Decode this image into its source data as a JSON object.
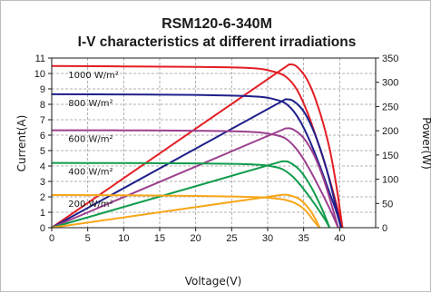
{
  "chart_data": {
    "type": "line",
    "title": "RSM120-6-340M",
    "subtitle": "I-V characteristics at different irradiations",
    "xlabel": "Voltage(V)",
    "ylabel_left": "Current(A)",
    "ylabel_right": "Power(W)",
    "xlim": [
      0,
      45
    ],
    "ylim_left": [
      0,
      11
    ],
    "ylim_right": [
      0,
      350
    ],
    "xticks": [
      0,
      5,
      10,
      15,
      20,
      25,
      30,
      35,
      40
    ],
    "yticks_left": [
      0,
      1,
      2,
      3,
      4,
      5,
      6,
      7,
      8,
      9,
      10,
      11
    ],
    "yticks_right": [
      0,
      50,
      100,
      150,
      200,
      250,
      300,
      350
    ],
    "grid": "dashed",
    "series": [
      {
        "name": "1000 W/m²",
        "color": "#e31e24",
        "iv": [
          [
            0,
            10.48
          ],
          [
            10,
            10.46
          ],
          [
            20,
            10.43
          ],
          [
            26,
            10.38
          ],
          [
            29,
            10.3
          ],
          [
            31,
            10.1
          ],
          [
            32.5,
            9.8
          ],
          [
            34,
            9.0
          ],
          [
            35.5,
            7.5
          ],
          [
            37,
            5.5
          ],
          [
            38.5,
            3.3
          ],
          [
            39.5,
            1.6
          ],
          [
            40.4,
            0
          ]
        ],
        "pv": [
          [
            0,
            0
          ],
          [
            33,
            337
          ],
          [
            34,
            333
          ],
          [
            35.5,
            305
          ],
          [
            37,
            250
          ],
          [
            38.5,
            170
          ],
          [
            39.5,
            90
          ],
          [
            40.4,
            0
          ]
        ]
      },
      {
        "name": "800 W/m²",
        "color": "#1f1f8c",
        "iv": [
          [
            0,
            8.65
          ],
          [
            10,
            8.64
          ],
          [
            20,
            8.61
          ],
          [
            26,
            8.55
          ],
          [
            29,
            8.48
          ],
          [
            31,
            8.32
          ],
          [
            32.5,
            8.05
          ],
          [
            34,
            7.3
          ],
          [
            35.5,
            6.0
          ],
          [
            37,
            4.3
          ],
          [
            38.5,
            2.4
          ],
          [
            39.5,
            1.1
          ],
          [
            40.2,
            0
          ]
        ],
        "pv": [
          [
            0,
            0
          ],
          [
            32.5,
            265
          ],
          [
            33.5,
            262
          ],
          [
            35,
            240
          ],
          [
            36.5,
            195
          ],
          [
            38,
            130
          ],
          [
            39.3,
            55
          ],
          [
            40.2,
            0
          ]
        ]
      },
      {
        "name": "600 W/m²",
        "color": "#9b3f8e",
        "iv": [
          [
            0,
            6.32
          ],
          [
            10,
            6.31
          ],
          [
            20,
            6.29
          ],
          [
            26,
            6.24
          ],
          [
            29,
            6.17
          ],
          [
            31,
            6.02
          ],
          [
            32.5,
            5.78
          ],
          [
            34,
            5.1
          ],
          [
            35.5,
            4.05
          ],
          [
            37,
            2.75
          ],
          [
            38.5,
            1.35
          ],
          [
            39.8,
            0
          ]
        ],
        "pv": [
          [
            0,
            0
          ],
          [
            32.5,
            205
          ],
          [
            33.5,
            203
          ],
          [
            35,
            185
          ],
          [
            36.5,
            148
          ],
          [
            38,
            90
          ],
          [
            39.8,
            0
          ]
        ]
      },
      {
        "name": "400 W/m²",
        "color": "#109c4c",
        "iv": [
          [
            0,
            4.2
          ],
          [
            10,
            4.19
          ],
          [
            20,
            4.17
          ],
          [
            26,
            4.13
          ],
          [
            29,
            4.07
          ],
          [
            30.5,
            3.98
          ],
          [
            32,
            3.8
          ],
          [
            33.5,
            3.3
          ],
          [
            35,
            2.5
          ],
          [
            36.5,
            1.55
          ],
          [
            38,
            0.5
          ],
          [
            38.6,
            0
          ]
        ],
        "pv": [
          [
            0,
            0
          ],
          [
            32,
            137
          ],
          [
            33,
            135
          ],
          [
            34.5,
            118
          ],
          [
            36,
            85
          ],
          [
            37.5,
            40
          ],
          [
            38.6,
            0
          ]
        ]
      },
      {
        "name": "200 W/m²",
        "color": "#f7a619",
        "iv": [
          [
            0,
            2.12
          ],
          [
            10,
            2.1
          ],
          [
            20,
            2.06
          ],
          [
            26,
            2.01
          ],
          [
            29,
            1.97
          ],
          [
            31,
            1.9
          ],
          [
            32.5,
            1.8
          ],
          [
            34,
            1.55
          ],
          [
            35.3,
            1.1
          ],
          [
            36.3,
            0.5
          ],
          [
            37.2,
            0
          ]
        ],
        "pv": [
          [
            0,
            0
          ],
          [
            32,
            68
          ],
          [
            33,
            67
          ],
          [
            34.5,
            58
          ],
          [
            35.8,
            38
          ],
          [
            36.7,
            16
          ],
          [
            37.2,
            0
          ]
        ]
      }
    ]
  }
}
